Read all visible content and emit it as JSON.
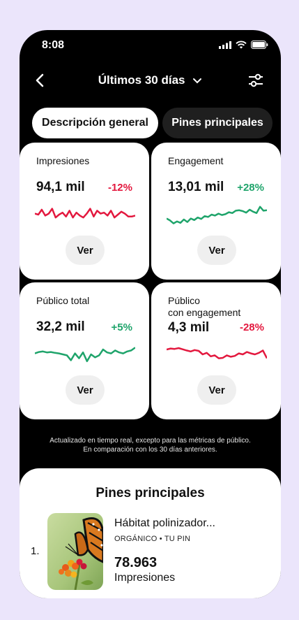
{
  "status_bar": {
    "time": "8:08"
  },
  "nav": {
    "title": "Últimos 30 días"
  },
  "tabs": [
    "Descripción general",
    "Pines principales"
  ],
  "cards": [
    {
      "label": "Impresiones",
      "value": "94,1 mil",
      "change": "-12%",
      "trend": "negative",
      "color": "#e3183e",
      "spark": [
        0.55,
        0.5,
        0.75,
        0.45,
        0.55,
        0.8,
        0.35,
        0.5,
        0.6,
        0.4,
        0.7,
        0.35,
        0.6,
        0.45,
        0.35,
        0.55,
        0.8,
        0.4,
        0.7,
        0.55,
        0.6,
        0.45,
        0.7,
        0.35,
        0.5,
        0.65,
        0.55,
        0.4,
        0.4,
        0.45
      ],
      "button": "Ver"
    },
    {
      "label": "Engagement",
      "value": "13,01 mil",
      "change": "+28%",
      "trend": "positive",
      "color": "#1fa46b",
      "spark": [
        0.3,
        0.2,
        0.05,
        0.15,
        0.08,
        0.25,
        0.12,
        0.3,
        0.22,
        0.35,
        0.28,
        0.42,
        0.38,
        0.5,
        0.45,
        0.55,
        0.48,
        0.52,
        0.62,
        0.58,
        0.7,
        0.72,
        0.68,
        0.6,
        0.75,
        0.65,
        0.58,
        0.9,
        0.7,
        0.72
      ],
      "button": "Ver"
    },
    {
      "label": "Público total",
      "value": "32,2 mil",
      "change": "+5%",
      "trend": "positive",
      "color": "#1fa46b",
      "spark": [
        0.55,
        0.62,
        0.65,
        0.6,
        0.62,
        0.58,
        0.55,
        0.5,
        0.45,
        0.2,
        0.55,
        0.3,
        0.6,
        0.15,
        0.5,
        0.35,
        0.45,
        0.75,
        0.6,
        0.55,
        0.7,
        0.6,
        0.55,
        0.65,
        0.7,
        0.85
      ],
      "button": "Ver"
    },
    {
      "label": "Público\ncon engagement",
      "value": "4,3 mil",
      "change": "-28%",
      "trend": "negative",
      "color": "#e3183e",
      "spark": [
        0.75,
        0.8,
        0.78,
        0.82,
        0.76,
        0.7,
        0.65,
        0.72,
        0.68,
        0.5,
        0.58,
        0.4,
        0.45,
        0.3,
        0.32,
        0.45,
        0.38,
        0.42,
        0.55,
        0.5,
        0.62,
        0.55,
        0.5,
        0.58,
        0.7,
        0.3
      ],
      "button": "Ver"
    }
  ],
  "note": {
    "line1": "Actualizado en tiempo real, excepto para las métricas de público.",
    "line2": "En comparación con los 30 días anteriores."
  },
  "top_pins": {
    "title": "Pines principales",
    "items": [
      {
        "rank": "1.",
        "title": "Hábitat polinizador...",
        "subtitle": "ORGÁNICO • TU PIN",
        "value": "78.963",
        "unit": "Impresiones"
      }
    ]
  }
}
